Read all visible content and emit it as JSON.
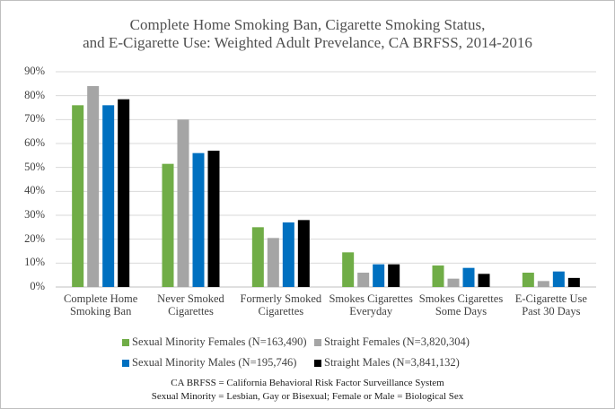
{
  "chart_data": {
    "type": "bar",
    "title": "Complete Home Smoking Ban, Cigarette Smoking Status,\nand E-Cigarette Use: Weighted Adult Prevelance, CA BRFSS, 2014-2016",
    "categories": [
      "Complete Home\nSmoking Ban",
      "Never Smoked\nCigarettes",
      "Formerly Smoked\nCigarettes",
      "Smokes Cigarettes\nEveryday",
      "Smokes Cigarettes\nSome Days",
      "E-Cigarette Use\nPast 30 Days"
    ],
    "series": [
      {
        "name": "Sexual Minority Females (N=163,490)",
        "color": "#70ad47",
        "values": [
          76,
          51.5,
          25,
          14.5,
          9,
          6
        ]
      },
      {
        "name": "Straight Females (N=3,820,304)",
        "color": "#a5a5a5",
        "values": [
          84,
          70,
          20.5,
          6,
          3.5,
          2.5
        ]
      },
      {
        "name": "Sexual Minority Males (N=195,746)",
        "color": "#0070c0",
        "values": [
          76,
          56,
          27,
          9.5,
          8,
          6.5
        ]
      },
      {
        "name": "Straight Males (N=3,841,132)",
        "color": "#000000",
        "values": [
          78.5,
          57,
          28,
          9.5,
          5.5,
          3.8
        ]
      }
    ],
    "ylim": [
      0,
      90
    ],
    "yticks": [
      {
        "value": 0,
        "label": "0%"
      },
      {
        "value": 10,
        "label": "10%"
      },
      {
        "value": 20,
        "label": "20%"
      },
      {
        "value": 30,
        "label": "30%"
      },
      {
        "value": 40,
        "label": "40%"
      },
      {
        "value": 50,
        "label": "50%"
      },
      {
        "value": 60,
        "label": "60%"
      },
      {
        "value": 70,
        "label": "70%"
      },
      {
        "value": 80,
        "label": "80%"
      },
      {
        "value": 90,
        "label": "90%"
      }
    ],
    "grid": true,
    "legend": "bottom",
    "notes": [
      "CA BRFSS = California Behavioral Risk Factor Surveillance System",
      "Sexual Minority = Lesbian, Gay or Bisexual; Female or Male = Biological Sex"
    ]
  }
}
